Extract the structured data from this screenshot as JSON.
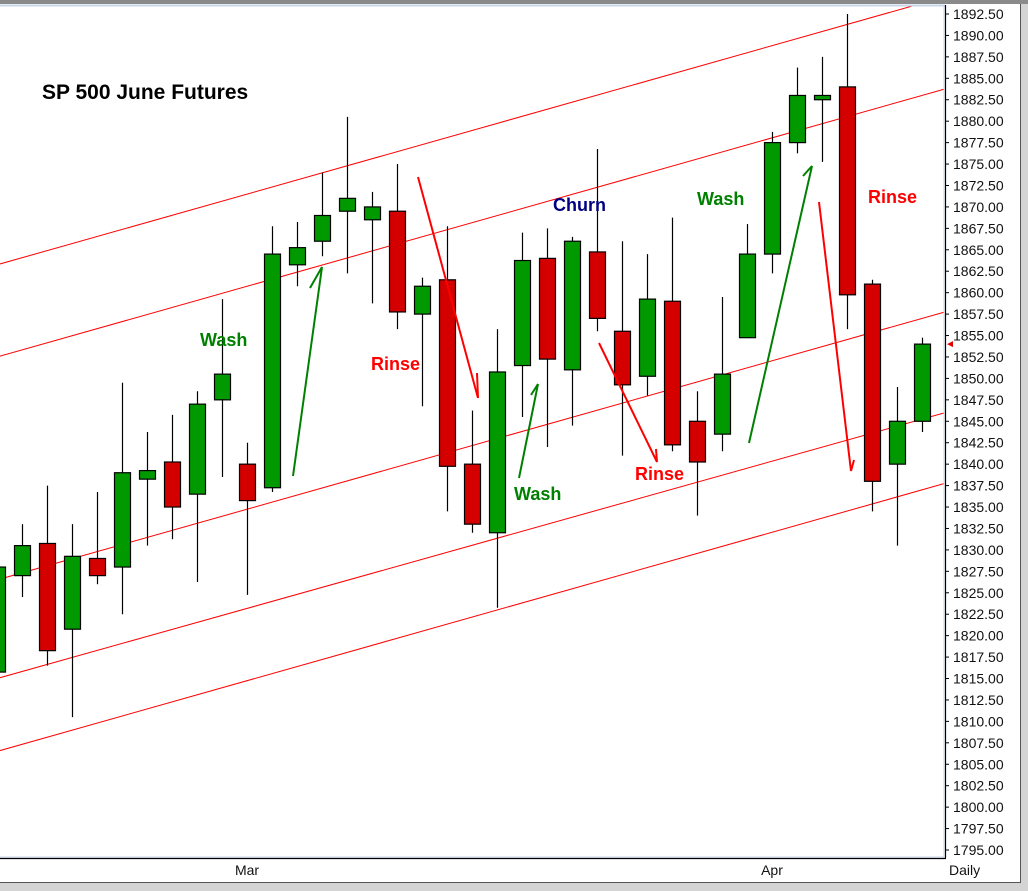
{
  "chart_data": {
    "type": "candlestick",
    "title": "SP 500 June Futures",
    "timeframe_label": "Daily",
    "ylim": [
      1795.0,
      1892.5
    ],
    "y_tick_step": 2.5,
    "grid": false,
    "x_labels": [
      {
        "label": "Mar",
        "bar": 10
      },
      {
        "label": "Apr",
        "bar": 31
      }
    ],
    "candle_fields": [
      "open",
      "high",
      "low",
      "close"
    ],
    "candles": [
      [
        1815.75,
        1828.75,
        1815.5,
        1828
      ],
      [
        1827,
        1833,
        1824.5,
        1830.5
      ],
      [
        1830.75,
        1837.5,
        1816.5,
        1818.25
      ],
      [
        1820.75,
        1833,
        1810.5,
        1829.25
      ],
      [
        1829,
        1836.75,
        1826,
        1827
      ],
      [
        1828,
        1849.5,
        1822.5,
        1839
      ],
      [
        1838.25,
        1843.75,
        1830.5,
        1839.25
      ],
      [
        1840.25,
        1845.75,
        1831.25,
        1835
      ],
      [
        1836.5,
        1848.5,
        1826.25,
        1847
      ],
      [
        1847.5,
        1859.25,
        1838.5,
        1850.5
      ],
      [
        1840,
        1842.5,
        1824.75,
        1835.75
      ],
      [
        1837.25,
        1867.75,
        1836.75,
        1864.5
      ],
      [
        1863.25,
        1868.25,
        1860.75,
        1865.25
      ],
      [
        1866,
        1874,
        1864.25,
        1869
      ],
      [
        1869.5,
        1880.5,
        1862.25,
        1871
      ],
      [
        1868.5,
        1871.75,
        1858.75,
        1870
      ],
      [
        1869.5,
        1875,
        1855.75,
        1857.75
      ],
      [
        1857.5,
        1861.75,
        1846.75,
        1860.75
      ],
      [
        1861.5,
        1867.75,
        1834.5,
        1839.75
      ],
      [
        1840,
        1846.25,
        1832,
        1833
      ],
      [
        1832,
        1855.75,
        1823.25,
        1850.75
      ],
      [
        1851.5,
        1867,
        1845.5,
        1863.75
      ],
      [
        1864,
        1867.5,
        1842,
        1852.25
      ],
      [
        1851,
        1866.5,
        1844.5,
        1866
      ],
      [
        1864.75,
        1876.75,
        1855.5,
        1857
      ],
      [
        1855.5,
        1866,
        1841,
        1849.25
      ],
      [
        1850.25,
        1864.5,
        1848,
        1859.25
      ],
      [
        1859,
        1868.75,
        1841.5,
        1842.25
      ],
      [
        1845,
        1848.5,
        1834,
        1840.25
      ],
      [
        1843.5,
        1859.5,
        1841.5,
        1850.5
      ],
      [
        1854.75,
        1868,
        1854.75,
        1864.5
      ],
      [
        1864.5,
        1878.75,
        1862.25,
        1877.5
      ],
      [
        1877.5,
        1886.25,
        1876.25,
        1883
      ],
      [
        1882.5,
        1887.5,
        1875.25,
        1883
      ],
      [
        1884,
        1892.5,
        1855.75,
        1859.75
      ],
      [
        1861,
        1861.5,
        1834.5,
        1838
      ],
      [
        1840,
        1849,
        1830.5,
        1845
      ],
      [
        1845,
        1854.75,
        1843.75,
        1854
      ]
    ],
    "channel_lines": [
      {
        "start": {
          "bar": 0,
          "price": 1863.25
        },
        "end": {
          "bar": 37,
          "price": 1893.75
        }
      },
      {
        "start": {
          "bar": 0,
          "price": 1852.5
        },
        "end": {
          "bar": 37,
          "price": 1883.0
        }
      },
      {
        "start": {
          "bar": 0,
          "price": 1826.5
        },
        "end": {
          "bar": 37,
          "price": 1857.0
        }
      },
      {
        "start": {
          "bar": 0,
          "price": 1815.0
        },
        "end": {
          "bar": 37,
          "price": 1845.25
        }
      },
      {
        "start": {
          "bar": 0,
          "price": 1806.5
        },
        "end": {
          "bar": 37,
          "price": 1837.0
        }
      }
    ],
    "last_price_marker": 1854.0,
    "annotations": [
      {
        "text": "Wash",
        "color": "#008000"
      },
      {
        "text": "Rinse",
        "color": "#ff0000"
      },
      {
        "text": "Churn",
        "color": "#000080"
      },
      {
        "text": "Wash",
        "color": "#008000"
      },
      {
        "text": "Rinse",
        "color": "#ff0000"
      },
      {
        "text": "Wash",
        "color": "#008000"
      },
      {
        "text": "Rinse",
        "color": "#ff0000"
      }
    ],
    "colors": {
      "up": "#009900",
      "down": "#d40000",
      "channel": "#ff0000",
      "up_arrow": "#008000",
      "down_arrow": "#ff0000"
    }
  }
}
